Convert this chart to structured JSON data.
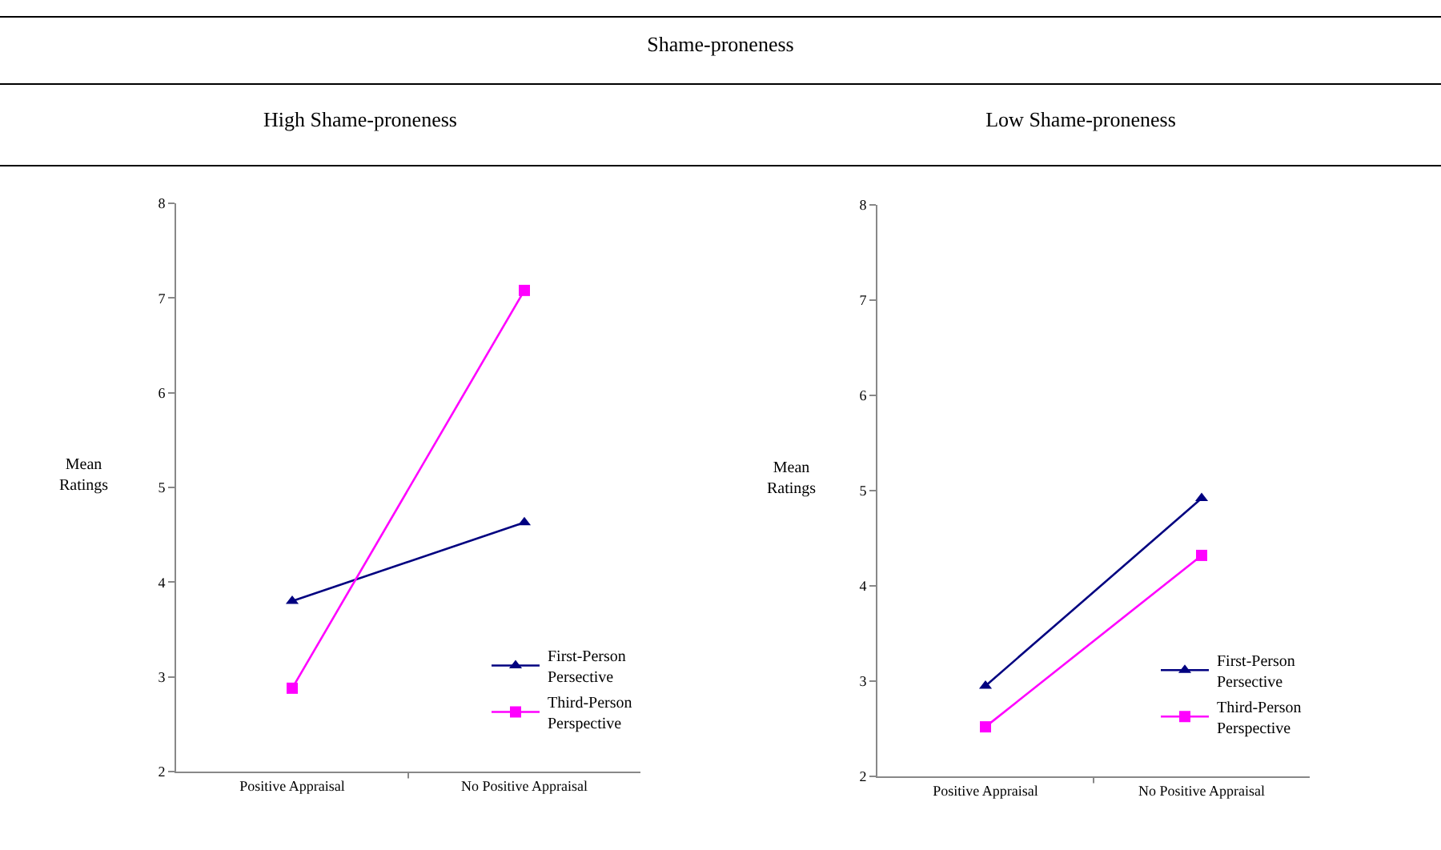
{
  "chart_data": [
    {
      "type": "line",
      "title": "High Shame-proneness",
      "annotations": [
        "Shame-proneness"
      ],
      "ylabel": "Mean Ratings",
      "categories": [
        "Positive Appraisal",
        "No Positive Appraisal"
      ],
      "ylim": [
        2,
        8
      ],
      "yticks": [
        2,
        3,
        4,
        5,
        6,
        7,
        8
      ],
      "grid": false,
      "legend": "bottom right",
      "series": [
        {
          "name": "First-Person Persective",
          "color": "#000080",
          "marker": "triangle",
          "values": [
            3.8,
            4.63
          ]
        },
        {
          "name": "Third-Person Perspective",
          "color": "#ff00ff",
          "marker": "square",
          "values": [
            2.88,
            7.08
          ]
        }
      ]
    },
    {
      "type": "line",
      "title": "Low Shame-proneness",
      "ylabel": "Mean Ratings",
      "categories": [
        "Positive Appraisal",
        "No Positive Appraisal"
      ],
      "ylim": [
        2,
        8
      ],
      "yticks": [
        2,
        3,
        4,
        5,
        6,
        7,
        8
      ],
      "grid": false,
      "legend": "bottom right",
      "series": [
        {
          "name": "First-Person Persective",
          "color": "#000080",
          "marker": "triangle",
          "values": [
            2.95,
            4.92
          ]
        },
        {
          "name": "Third-Person Perspective",
          "color": "#ff00ff",
          "marker": "square",
          "values": [
            2.52,
            4.32
          ]
        }
      ]
    }
  ]
}
